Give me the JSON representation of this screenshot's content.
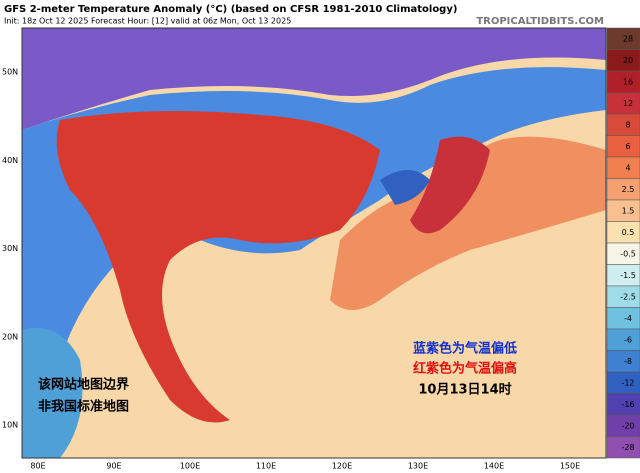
{
  "header": {
    "title": "GFS 2-meter Temperature Anomaly (°C) (based on CFSR 1981-2010 Climatology)",
    "subtitle": "Init: 18z Oct 12 2025   Forecast Hour: [12]   valid at 06z Mon, Oct 13 2025",
    "site": "TROPICALTIDBITS.COM"
  },
  "map": {
    "lat_labels": [
      "50N",
      "40N",
      "30N",
      "20N",
      "10N"
    ],
    "lon_labels": [
      "80E",
      "90E",
      "100E",
      "110E",
      "120E",
      "130E",
      "140E",
      "150E"
    ],
    "annotations": {
      "cold": "蓝紫色为气温偏低",
      "warm": "红紫色为气温偏高",
      "time": "10月13日14时",
      "disclaimer": [
        "该网站地图边界",
        "非我国标准地图"
      ]
    }
  },
  "colorbar": {
    "ticks": [
      28,
      20,
      16,
      12,
      8,
      6,
      4,
      2.5,
      1.5,
      0.5,
      -0.5,
      -1.5,
      -2.5,
      -4,
      -6,
      -8,
      -12,
      -16,
      -20,
      -28
    ],
    "colors": [
      "#6b3a2c",
      "#8b1a1a",
      "#b0202a",
      "#c8303a",
      "#d84a3a",
      "#e86040",
      "#f08050",
      "#f5a070",
      "#f8c090",
      "#fbe0b0",
      "#f5f5e8",
      "#d0eef0",
      "#a0dce8",
      "#70c0e0",
      "#50a0d8",
      "#4080d0",
      "#3060c0",
      "#5040b0",
      "#7040a8",
      "#9050b0"
    ]
  }
}
